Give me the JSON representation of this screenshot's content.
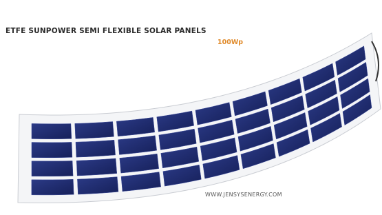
{
  "header": {
    "title": "ETFE SUNPOWER SEMI FLEXIBLE SOLAR PANELS",
    "power": "100Wp"
  },
  "footer": {
    "website": "WWW.JENSYSENERGY.COM"
  }
}
